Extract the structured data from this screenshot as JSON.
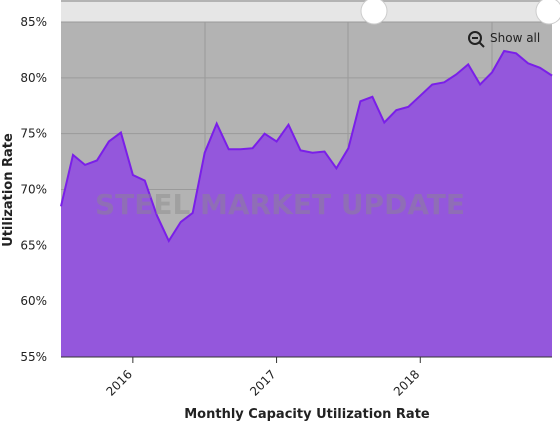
{
  "chart_data": {
    "type": "area",
    "x_label": "Monthly Capacity Utilization Rate",
    "y_label": "Utilization Rate",
    "watermark": "STEEL MARKET UPDATE",
    "button": "Show all",
    "categories": [
      null,
      null,
      null,
      null,
      null,
      null,
      "2016",
      null,
      null,
      null,
      null,
      null,
      null,
      null,
      null,
      null,
      null,
      null,
      "2017",
      null,
      null,
      null,
      null,
      null,
      null,
      null,
      null,
      null,
      null,
      null,
      "2018",
      null,
      null,
      null,
      null,
      null,
      null,
      null,
      null,
      null,
      null,
      null
    ],
    "series": [
      {
        "name": "Utilization Rate",
        "color": "#7a1fe8",
        "values": [
          68.5,
          73.1,
          72.2,
          72.6,
          74.3,
          75.1,
          71.3,
          70.8,
          67.7,
          65.4,
          67.1,
          67.9,
          73.3,
          75.9,
          73.6,
          73.6,
          73.7,
          75.0,
          74.3,
          75.8,
          73.5,
          73.3,
          73.4,
          71.9,
          73.7,
          77.9,
          78.3,
          76.0,
          77.1,
          77.4,
          78.4,
          79.4,
          79.6,
          80.3,
          81.2,
          79.4,
          80.5,
          82.4,
          82.2,
          81.3,
          80.9,
          80.2
        ]
      }
    ],
    "ylim": [
      55,
      85
    ],
    "yticks": [
      {
        "value": 55,
        "label": "55%"
      },
      {
        "value": 60,
        "label": "60%"
      },
      {
        "value": 65,
        "label": "65%"
      },
      {
        "value": 70,
        "label": "70%"
      },
      {
        "value": 75,
        "label": "75%"
      },
      {
        "value": 80,
        "label": "80%"
      },
      {
        "value": 85,
        "label": "85%"
      }
    ],
    "grid": true
  }
}
